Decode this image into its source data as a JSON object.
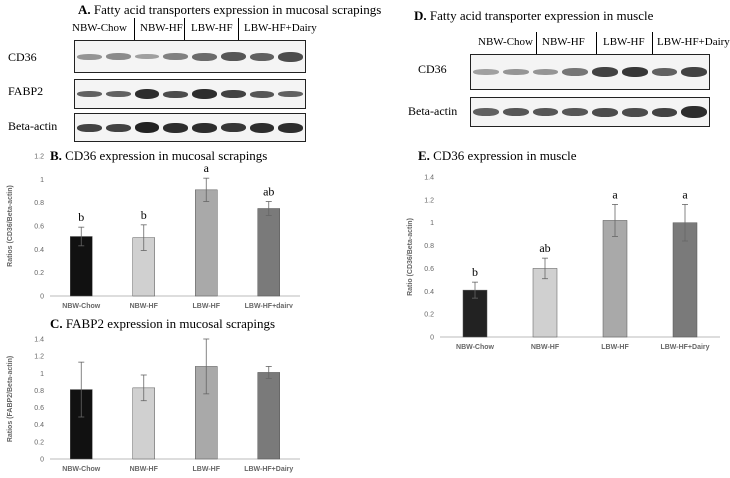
{
  "panels": {
    "A": {
      "letter": "A.",
      "title": "Fatty acid transporters expression in mucosal scrapings"
    },
    "B": {
      "letter": "B.",
      "title": "CD36 expression in mucosal scrapings"
    },
    "C": {
      "letter": "C.",
      "title": "FABP2 expression in mucosal scrapings"
    },
    "D": {
      "letter": "D.",
      "title": "Fatty acid transporter expression in muscle"
    },
    "E": {
      "letter": "E.",
      "title": "CD36 expression in muscle"
    }
  },
  "blotA": {
    "lanes": [
      "NBW-Chow",
      "NBW-HF",
      "LBW-HF",
      "LBW-HF+Dairy"
    ],
    "rows": [
      "CD36",
      "FABP2",
      "Beta-actin"
    ]
  },
  "blotD": {
    "lanes": [
      "NBW-Chow",
      "NBW-HF",
      "LBW-HF",
      "LBW-HF+Dairy"
    ],
    "rows": [
      "CD36",
      "Beta-actin"
    ]
  },
  "chart_data": [
    {
      "id": "B",
      "type": "bar",
      "categories": [
        "NBW-Chow",
        "NBW-HF",
        "LBW-HF",
        "LBW-HF+dairy"
      ],
      "values": [
        0.51,
        0.5,
        0.91,
        0.75
      ],
      "errors": [
        0.08,
        0.11,
        0.1,
        0.06
      ],
      "significance": [
        "b",
        "b",
        "a",
        "ab"
      ],
      "ylabel": "Ratios (CD36/Beta-actin)",
      "ylim": [
        0,
        1.2
      ],
      "yticks": [
        "0",
        "0.2",
        "0.4",
        "0.6",
        "0.8",
        "1",
        "1.2"
      ],
      "colors": [
        "#111111",
        "#d0d0d0",
        "#a9a9a9",
        "#7a7a7a"
      ]
    },
    {
      "id": "C",
      "type": "bar",
      "categories": [
        "NBW-Chow",
        "NBW-HF",
        "LBW-HF",
        "LBW-HF+Dairy"
      ],
      "values": [
        0.81,
        0.83,
        1.08,
        1.01
      ],
      "errors": [
        0.32,
        0.15,
        0.32,
        0.07
      ],
      "ylabel": "Ratios (FABP2/Beta-actin)",
      "ylim": [
        0,
        1.4
      ],
      "yticks": [
        "0",
        "0.2",
        "0.4",
        "0.6",
        "0.8",
        "1",
        "1.2",
        "1.4"
      ],
      "colors": [
        "#111111",
        "#d0d0d0",
        "#a9a9a9",
        "#7a7a7a"
      ]
    },
    {
      "id": "E",
      "type": "bar",
      "categories": [
        "NBW-Chow",
        "NBW-HF",
        "LBW-HF",
        "LBW-HF+Dairy"
      ],
      "values": [
        0.41,
        0.6,
        1.02,
        1.0
      ],
      "errors": [
        0.07,
        0.09,
        0.14,
        0.16
      ],
      "significance": [
        "b",
        "ab",
        "a",
        "a"
      ],
      "ylabel": "Ratio (CD36/Beta-actin)",
      "ylim": [
        0,
        1.4
      ],
      "yticks": [
        "0",
        "0.2",
        "0.4",
        "0.6",
        "0.8",
        "1",
        "1.2",
        "1.4"
      ],
      "colors": [
        "#222222",
        "#d0d0d0",
        "#a9a9a9",
        "#7a7a7a"
      ]
    }
  ]
}
